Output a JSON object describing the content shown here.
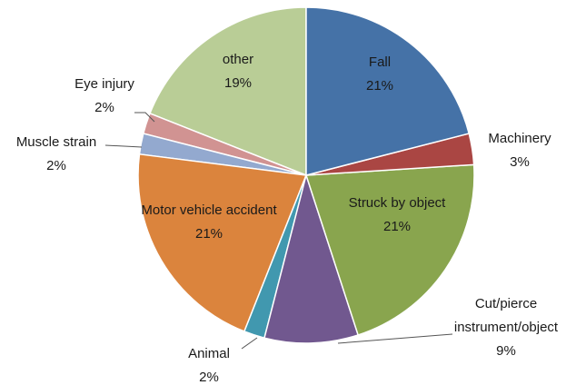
{
  "chart_data": {
    "type": "pie",
    "categories": [
      "Fall",
      "Machinery",
      "Struck by object",
      "Cut/pierce instrument/object",
      "Animal",
      "Motor vehicle accident",
      "Muscle strain",
      "Eye injury",
      "other"
    ],
    "values": [
      21,
      3,
      21,
      9,
      2,
      21,
      2,
      2,
      19
    ],
    "value_labels": [
      "21%",
      "3%",
      "21%",
      "9%",
      "2%",
      "21%",
      "2%",
      "2%",
      "19%"
    ],
    "colors": [
      "#4572a7",
      "#aa4643",
      "#89a54e",
      "#71588f",
      "#4198af",
      "#db843d",
      "#93a9cf",
      "#d19392",
      "#b9cd96"
    ]
  }
}
